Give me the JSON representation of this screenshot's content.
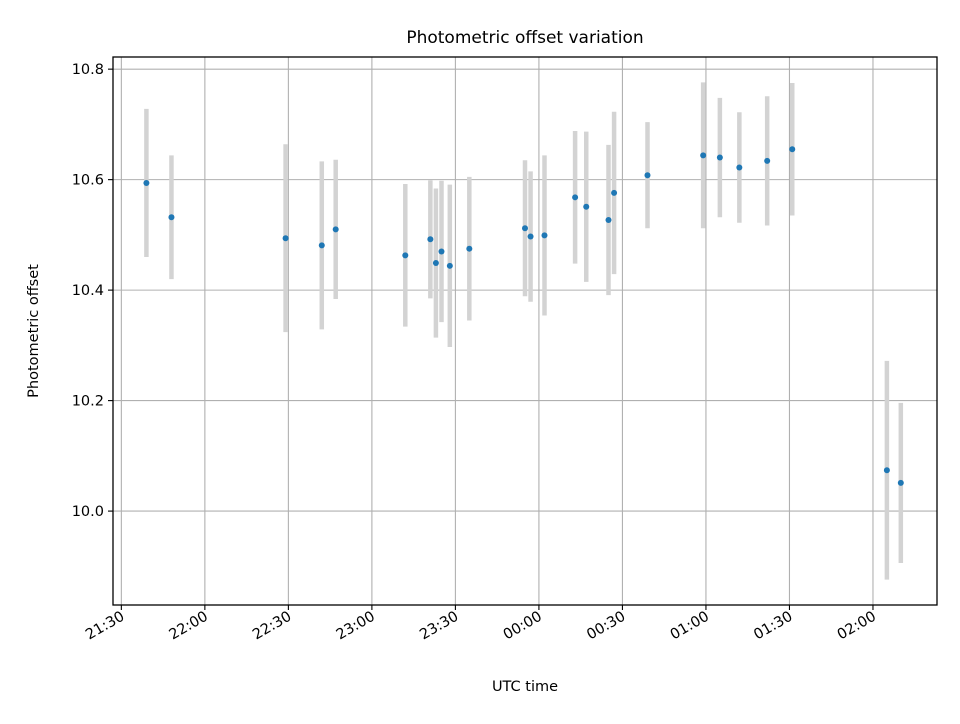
{
  "chart_data": {
    "type": "scatter",
    "title": "Photometric offset variation",
    "xlabel": "UTC time",
    "ylabel": "Photometric offset",
    "x_is_time": true,
    "xlim": [
      "21:27",
      "02:23"
    ],
    "ylim": [
      9.83,
      10.822
    ],
    "grid": true,
    "xticks": [
      "21:30",
      "22:00",
      "22:30",
      "23:00",
      "23:30",
      "00:00",
      "00:30",
      "01:00",
      "01:30",
      "02:00"
    ],
    "yticks": [
      10.0,
      10.2,
      10.4,
      10.6,
      10.8
    ],
    "colors": {
      "point": "#1f77b4",
      "errorbar": "#d3d3d3",
      "grid": "#b0b0b0"
    },
    "points": [
      {
        "x": "21:39",
        "y": 10.594,
        "err": 0.134
      },
      {
        "x": "21:48",
        "y": 10.532,
        "err": 0.112
      },
      {
        "x": "22:29",
        "y": 10.494,
        "err": 0.17
      },
      {
        "x": "22:42",
        "y": 10.481,
        "err": 0.152
      },
      {
        "x": "22:47",
        "y": 10.51,
        "err": 0.126
      },
      {
        "x": "23:12",
        "y": 10.463,
        "err": 0.129
      },
      {
        "x": "23:21",
        "y": 10.492,
        "err": 0.107
      },
      {
        "x": "23:23",
        "y": 10.449,
        "err": 0.135
      },
      {
        "x": "23:25",
        "y": 10.47,
        "err": 0.128
      },
      {
        "x": "23:28",
        "y": 10.444,
        "err": 0.147
      },
      {
        "x": "23:35",
        "y": 10.475,
        "err": 0.13
      },
      {
        "x": "23:55",
        "y": 10.512,
        "err": 0.123
      },
      {
        "x": "23:57",
        "y": 10.497,
        "err": 0.118
      },
      {
        "x": "00:02",
        "y": 10.499,
        "err": 0.145
      },
      {
        "x": "00:13",
        "y": 10.568,
        "err": 0.12
      },
      {
        "x": "00:17",
        "y": 10.551,
        "err": 0.136
      },
      {
        "x": "00:25",
        "y": 10.527,
        "err": 0.136
      },
      {
        "x": "00:27",
        "y": 10.576,
        "err": 0.147
      },
      {
        "x": "00:39",
        "y": 10.608,
        "err": 0.096
      },
      {
        "x": "00:59",
        "y": 10.644,
        "err": 0.132
      },
      {
        "x": "01:05",
        "y": 10.64,
        "err": 0.108
      },
      {
        "x": "01:12",
        "y": 10.622,
        "err": 0.1
      },
      {
        "x": "01:22",
        "y": 10.634,
        "err": 0.117
      },
      {
        "x": "01:31",
        "y": 10.655,
        "err": 0.12
      },
      {
        "x": "02:05",
        "y": 10.074,
        "err": 0.198
      },
      {
        "x": "02:10",
        "y": 10.051,
        "err": 0.145
      }
    ]
  }
}
